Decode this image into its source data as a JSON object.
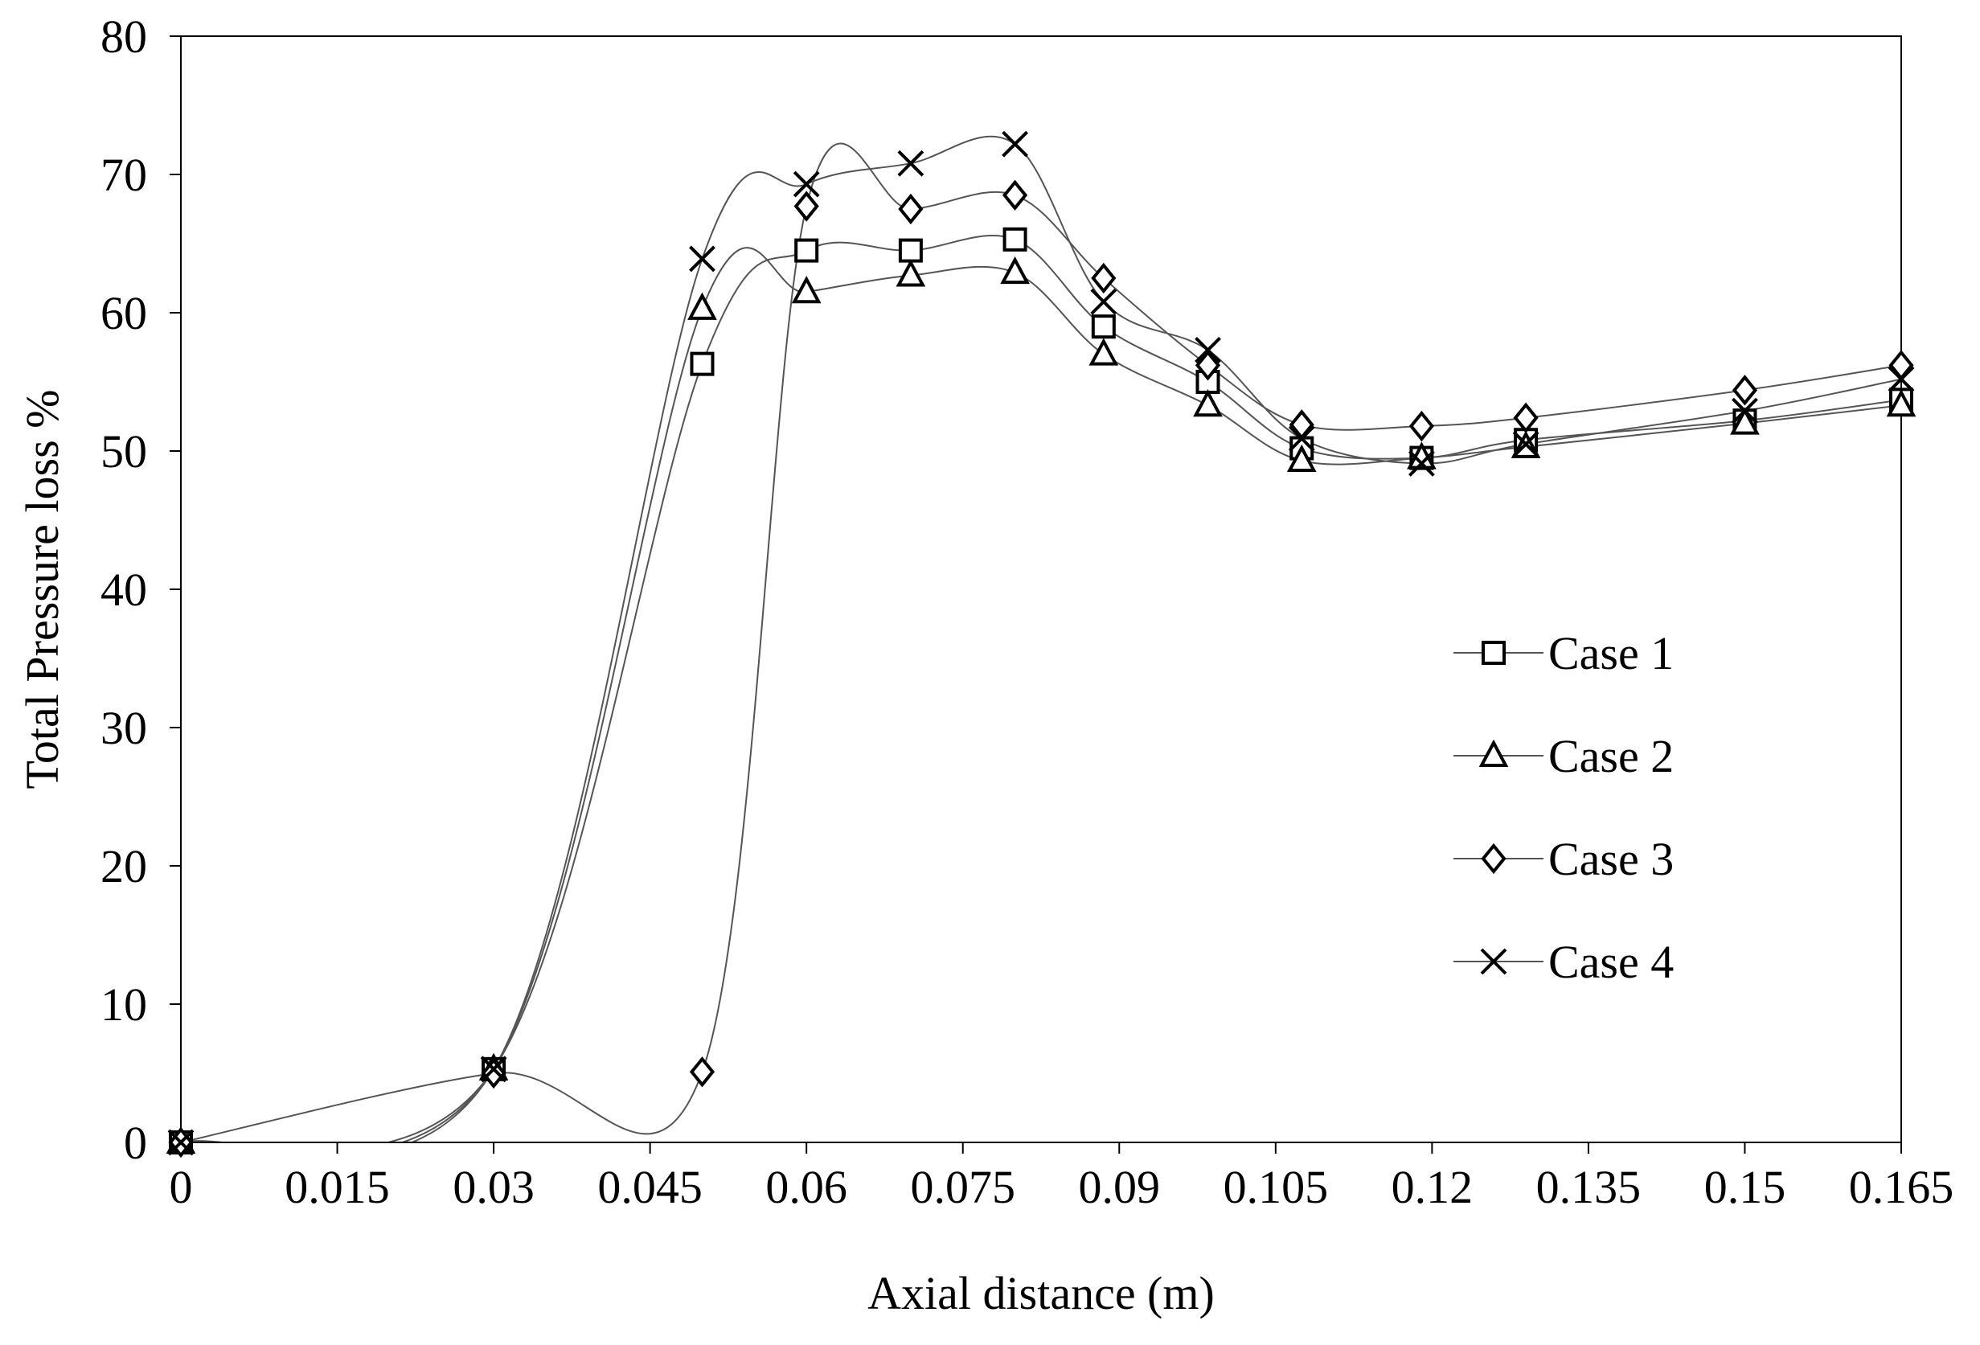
{
  "chart_data": {
    "type": "line",
    "title": "",
    "xlabel": "Axial distance (m)",
    "ylabel": "Total Pressure loss %",
    "xlim": [
      0,
      0.165
    ],
    "ylim": [
      0,
      80
    ],
    "x_ticks": [
      "0",
      "0.015",
      "0.03",
      "0.045",
      "0.06",
      "0.075",
      "0.09",
      "0.105",
      "0.12",
      "0.135",
      "0.15",
      "0.165"
    ],
    "y_ticks": [
      "0",
      "10",
      "20",
      "30",
      "40",
      "50",
      "60",
      "70",
      "80"
    ],
    "grid": false,
    "legend_position": "right",
    "line_color": "#555555",
    "marker_color": "#000000",
    "series": [
      {
        "name": "Case 1",
        "marker": "square",
        "points": [
          [
            0,
            0
          ],
          [
            0.03,
            5.3
          ],
          [
            0.05,
            56.3
          ],
          [
            0.06,
            64.5
          ],
          [
            0.07,
            64.5
          ],
          [
            0.08,
            65.3
          ],
          [
            0.0885,
            59.0
          ],
          [
            0.0985,
            55.0
          ],
          [
            0.1075,
            50.2
          ],
          [
            0.119,
            49.5
          ],
          [
            0.129,
            50.8
          ],
          [
            0.15,
            52.2
          ],
          [
            0.165,
            53.7
          ]
        ]
      },
      {
        "name": "Case 2",
        "marker": "triangle",
        "points": [
          [
            0,
            0
          ],
          [
            0.03,
            5.3
          ],
          [
            0.05,
            60.3
          ],
          [
            0.06,
            61.5
          ],
          [
            0.07,
            62.7
          ],
          [
            0.08,
            62.9
          ],
          [
            0.0885,
            57.0
          ],
          [
            0.0985,
            53.3
          ],
          [
            0.1075,
            49.3
          ],
          [
            0.119,
            49.5
          ],
          [
            0.129,
            50.3
          ],
          [
            0.15,
            52.0
          ],
          [
            0.165,
            53.3
          ]
        ]
      },
      {
        "name": "Case 3",
        "marker": "diamond",
        "points": [
          [
            0,
            0
          ],
          [
            0.03,
            5.0
          ],
          [
            0.05,
            5.1
          ],
          [
            0.06,
            67.7
          ],
          [
            0.07,
            67.5
          ],
          [
            0.08,
            68.5
          ],
          [
            0.0885,
            62.5
          ],
          [
            0.0985,
            56.2
          ],
          [
            0.1075,
            51.9
          ],
          [
            0.119,
            51.8
          ],
          [
            0.129,
            52.4
          ],
          [
            0.15,
            54.4
          ],
          [
            0.165,
            56.2
          ]
        ]
      },
      {
        "name": "Case 4",
        "marker": "x",
        "points": [
          [
            0,
            0
          ],
          [
            0.03,
            5.3
          ],
          [
            0.05,
            63.9
          ],
          [
            0.06,
            69.3
          ],
          [
            0.07,
            70.8
          ],
          [
            0.08,
            72.2
          ],
          [
            0.0885,
            60.8
          ],
          [
            0.0985,
            57.3
          ],
          [
            0.1075,
            50.9
          ],
          [
            0.119,
            49.1
          ],
          [
            0.129,
            50.5
          ],
          [
            0.15,
            52.9
          ],
          [
            0.165,
            55.2
          ]
        ]
      }
    ]
  }
}
